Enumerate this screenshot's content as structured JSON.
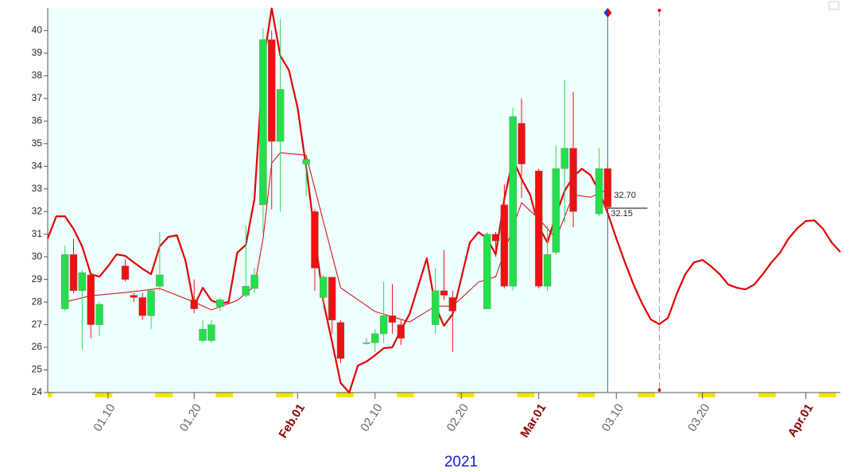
{
  "chart_data": {
    "type": "candlestick",
    "x": [
      "2021-01-05",
      "2021-01-06",
      "2021-01-07",
      "2021-01-08",
      "2021-01-09",
      "2021-01-12",
      "2021-01-13",
      "2021-01-14",
      "2021-01-15",
      "2021-01-16",
      "2021-01-20",
      "2021-01-21",
      "2021-01-22",
      "2021-01-23",
      "2021-01-26",
      "2021-01-27",
      "2021-01-28",
      "2021-01-29",
      "2021-01-30",
      "2021-02-02",
      "2021-02-03",
      "2021-02-04",
      "2021-02-05",
      "2021-02-06",
      "2021-02-09",
      "2021-02-10",
      "2021-02-11",
      "2021-02-12",
      "2021-02-13",
      "2021-02-17",
      "2021-02-18",
      "2021-02-19",
      "2021-02-23",
      "2021-02-24",
      "2021-02-25",
      "2021-02-26",
      "2021-02-27",
      "2021-03-01",
      "2021-03-02",
      "2021-03-03",
      "2021-03-04",
      "2021-03-05",
      "2021-03-08",
      "2021-03-09"
    ],
    "open": [
      27.7,
      30.1,
      28.5,
      29.2,
      27.0,
      29.6,
      28.3,
      28.2,
      27.4,
      28.7,
      28.1,
      26.3,
      26.3,
      27.8,
      28.3,
      28.6,
      32.3,
      39.6,
      35.1,
      34.1,
      32.0,
      28.2,
      29.1,
      27.1,
      26.2,
      26.2,
      26.6,
      27.4,
      27.0,
      27.0,
      28.5,
      28.2,
      27.7,
      31.0,
      32.3,
      28.7,
      35.9,
      33.8,
      28.7,
      30.2,
      33.9,
      34.8,
      31.9,
      33.9
    ],
    "high": [
      30.5,
      30.8,
      29.4,
      29.3,
      28.0,
      29.9,
      28.4,
      28.4,
      28.6,
      31.1,
      29.0,
      27.2,
      27.2,
      28.2,
      31.4,
      29.5,
      40.1,
      40.0,
      40.5,
      34.4,
      32.1,
      29.2,
      29.1,
      27.2,
      26.4,
      26.8,
      28.9,
      28.8,
      27.2,
      29.5,
      30.3,
      28.5,
      31.1,
      31.1,
      33.2,
      36.6,
      37.0,
      33.9,
      31.4,
      34.9,
      37.8,
      37.3,
      34.8,
      34.0
    ],
    "low": [
      27.6,
      28.4,
      25.9,
      26.4,
      26.5,
      28.9,
      28.0,
      27.2,
      26.8,
      28.5,
      27.5,
      26.2,
      26.2,
      27.6,
      28.2,
      28.4,
      31.0,
      32.1,
      32.0,
      32.7,
      28.5,
      27.8,
      26.6,
      25.3,
      26.1,
      25.8,
      26.2,
      26.6,
      26.1,
      26.6,
      28.1,
      25.8,
      27.7,
      30.0,
      28.6,
      28.5,
      32.6,
      28.6,
      28.5,
      30.1,
      31.5,
      31.3,
      31.8,
      32.0
    ],
    "close": [
      30.1,
      28.5,
      29.3,
      27.0,
      27.9,
      29.0,
      28.2,
      27.4,
      28.5,
      29.2,
      27.7,
      26.8,
      27.0,
      28.1,
      28.7,
      29.2,
      39.6,
      35.1,
      37.4,
      34.3,
      29.5,
      29.1,
      27.2,
      25.5,
      26.2,
      26.6,
      27.4,
      27.1,
      26.4,
      28.5,
      28.3,
      27.6,
      31.0,
      30.7,
      28.7,
      36.2,
      34.1,
      28.7,
      30.1,
      33.9,
      34.8,
      32.0,
      33.9,
      32.2
    ],
    "up_color": "#22e04a",
    "down_color": "#ee1111",
    "lines": [
      {
        "color": "#e00000",
        "width": 2.2,
        "x": [
          "2021-01-03",
          "2021-01-04",
          "2021-01-05",
          "2021-01-06",
          "2021-01-07",
          "2021-01-08",
          "2021-01-09",
          "2021-01-10",
          "2021-01-11",
          "2021-01-12",
          "2021-01-13",
          "2021-01-14",
          "2021-01-15",
          "2021-01-16",
          "2021-01-17",
          "2021-01-18",
          "2021-01-19",
          "2021-01-20",
          "2021-01-21",
          "2021-01-22",
          "2021-01-23",
          "2021-01-24",
          "2021-01-25",
          "2021-01-26",
          "2021-01-27",
          "2021-01-28",
          "2021-01-29",
          "2021-01-30",
          "2021-01-31",
          "2021-02-01",
          "2021-02-02",
          "2021-02-03",
          "2021-02-04",
          "2021-02-05",
          "2021-02-06",
          "2021-02-07",
          "2021-02-08",
          "2021-02-09",
          "2021-02-10",
          "2021-02-11",
          "2021-02-12",
          "2021-02-13",
          "2021-02-14",
          "2021-02-15",
          "2021-02-16",
          "2021-02-17",
          "2021-02-18",
          "2021-02-19",
          "2021-02-20",
          "2021-02-21",
          "2021-02-22",
          "2021-02-23",
          "2021-02-24",
          "2021-02-25",
          "2021-02-26",
          "2021-02-27",
          "2021-02-28",
          "2021-03-01",
          "2021-03-02",
          "2021-03-03",
          "2021-03-04",
          "2021-03-05",
          "2021-03-06",
          "2021-03-07",
          "2021-03-08",
          "2021-03-09",
          "2021-03-10",
          "2021-03-11",
          "2021-03-12",
          "2021-03-13",
          "2021-03-14",
          "2021-03-15",
          "2021-03-16",
          "2021-03-17",
          "2021-03-18",
          "2021-03-19",
          "2021-03-20",
          "2021-03-21",
          "2021-03-22",
          "2021-03-23",
          "2021-03-24",
          "2021-03-25",
          "2021-03-26",
          "2021-03-27",
          "2021-03-28",
          "2021-03-29",
          "2021-03-30",
          "2021-03-31",
          "2021-04-01",
          "2021-04-02",
          "2021-04-03",
          "2021-04-04",
          "2021-04-05"
        ],
        "values": [
          30.81,
          31.79,
          31.79,
          31.23,
          30.46,
          29.23,
          29.12,
          29.58,
          30.11,
          30.04,
          29.75,
          29.47,
          29.23,
          30.46,
          30.88,
          30.95,
          29.82,
          27.82,
          28.63,
          28.07,
          27.93,
          28.0,
          30.18,
          30.53,
          32.56,
          38.53,
          40.98,
          38.88,
          38.25,
          36.6,
          33.96,
          30.98,
          28.0,
          26.25,
          24.42,
          24.0,
          25.19,
          25.37,
          25.65,
          25.96,
          26.0,
          26.77,
          27.47,
          28.7,
          29.93,
          27.82,
          26.95,
          27.47,
          29.05,
          30.63,
          31.09,
          30.81,
          30.11,
          32.56,
          34.32,
          33.44,
          32.74,
          31.33,
          30.63,
          31.86,
          32.91,
          33.54,
          33.89,
          33.61,
          32.91,
          31.93,
          30.81,
          29.75,
          28.77,
          27.93,
          27.23,
          27.02,
          27.3,
          28.35,
          29.23,
          29.75,
          29.86,
          29.58,
          29.23,
          28.77,
          28.63,
          28.56,
          28.77,
          29.23,
          29.75,
          30.18,
          30.81,
          31.26,
          31.58,
          31.61,
          31.23,
          30.63,
          30.21
        ]
      },
      {
        "color": "#d00000",
        "width": 1,
        "x": [
          "2021-01-05",
          "2021-01-08",
          "2021-01-12",
          "2021-01-16",
          "2021-01-20",
          "2021-01-22",
          "2021-01-25",
          "2021-01-27",
          "2021-01-28",
          "2021-01-29",
          "2021-01-30",
          "2021-02-02",
          "2021-02-06",
          "2021-02-10",
          "2021-02-14",
          "2021-02-17",
          "2021-02-19",
          "2021-02-22",
          "2021-02-24",
          "2021-02-27",
          "2021-03-01",
          "2021-03-03",
          "2021-03-05",
          "2021-03-07",
          "2021-03-09"
        ],
        "values": [
          28.0,
          28.28,
          28.42,
          28.6,
          28.0,
          27.65,
          28.07,
          28.7,
          30.81,
          34.14,
          34.6,
          34.49,
          28.63,
          27.58,
          27.12,
          27.82,
          27.82,
          28.88,
          29.12,
          32.39,
          31.68,
          30.81,
          32.74,
          32.63,
          32.98
        ]
      }
    ],
    "price_labels": [
      {
        "value": 32.7,
        "label": "32.70"
      },
      {
        "value": 32.15,
        "label": "32.15"
      }
    ],
    "current_date": "2021-03-09",
    "forecast_marker_date": "2021-03-15",
    "history_background": "#efffff",
    "xlim": [
      "2021-01-03",
      "2021-04-05"
    ],
    "xticks": [
      {
        "value": "2021-01-10",
        "label": "01.10",
        "color": "#666666"
      },
      {
        "value": "2021-01-20",
        "label": "01.20",
        "color": "#666666"
      },
      {
        "value": "2021-02-01",
        "label": "Feb.01",
        "color": "#8b0000"
      },
      {
        "value": "2021-02-10",
        "label": "02.10",
        "color": "#666666"
      },
      {
        "value": "2021-02-20",
        "label": "02.20",
        "color": "#666666"
      },
      {
        "value": "2021-03-01",
        "label": "Mar.01",
        "color": "#8b0000"
      },
      {
        "value": "2021-03-10",
        "label": "03.10",
        "color": "#666666"
      },
      {
        "value": "2021-03-20",
        "label": "03.20",
        "color": "#666666"
      },
      {
        "value": "2021-04-01",
        "label": "Apr.01",
        "color": "#8b0000"
      }
    ],
    "x_label": "2021",
    "ylim": [
      24,
      41
    ],
    "yticks": [
      24,
      25,
      26,
      27,
      28,
      29,
      30,
      31,
      32,
      33,
      34,
      35,
      36,
      37,
      38,
      39,
      40
    ]
  }
}
